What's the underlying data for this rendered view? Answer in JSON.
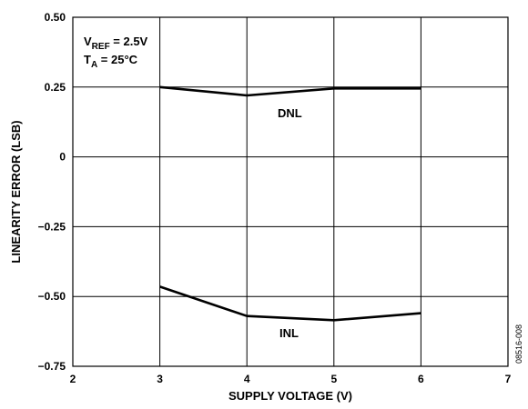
{
  "chart_data": {
    "type": "line",
    "xlabel": "SUPPLY VOLTAGE (V)",
    "ylabel": "LINEARITY ERROR (LSB)",
    "xlim": [
      2,
      7
    ],
    "ylim": [
      -0.75,
      0.5
    ],
    "x_ticks": [
      2,
      3,
      4,
      5,
      6,
      7
    ],
    "x_tick_labels": [
      "2",
      "3",
      "4",
      "5",
      "6",
      "7"
    ],
    "y_ticks": [
      0.5,
      0.25,
      0,
      -0.25,
      -0.5,
      -0.75
    ],
    "y_tick_labels": [
      "0.50",
      "0.25",
      "0",
      "−0.25",
      "−0.50",
      "−0.75"
    ],
    "grid": true,
    "conditions": [
      {
        "main": "V",
        "sub": "REF",
        "rest": " = 2.5V"
      },
      {
        "main": "T",
        "sub": "A",
        "rest": " = 25°C"
      }
    ],
    "series": [
      {
        "name": "DNL",
        "x": [
          3,
          4,
          5,
          6
        ],
        "y": [
          0.25,
          0.22,
          0.245,
          0.245
        ]
      },
      {
        "name": "INL",
        "x": [
          3,
          4,
          5,
          6
        ],
        "y": [
          -0.465,
          -0.57,
          -0.585,
          -0.56
        ]
      }
    ],
    "figure_id": "08516-008",
    "line_color": "#000000"
  }
}
